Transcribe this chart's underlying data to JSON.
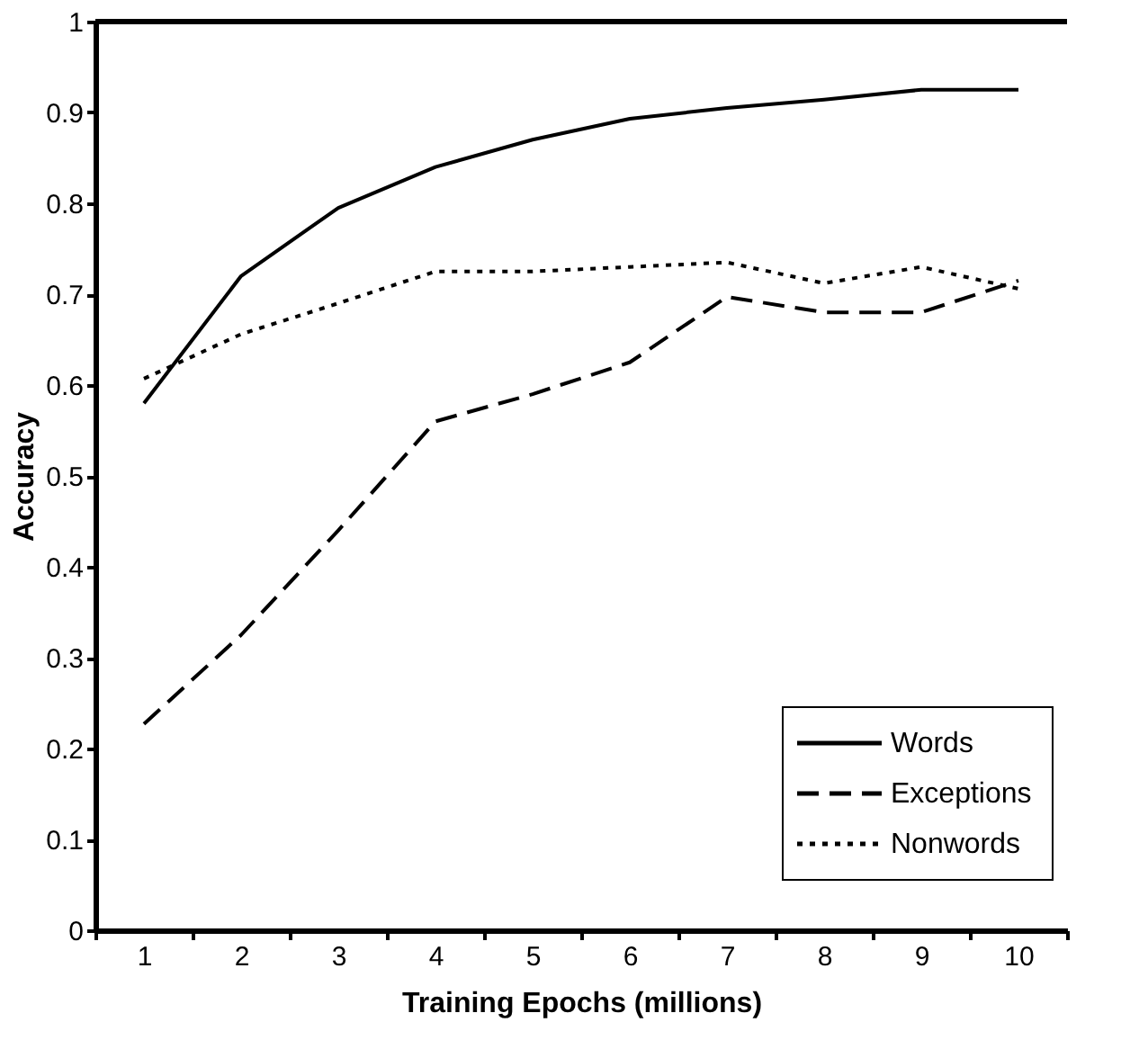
{
  "chart_data": {
    "type": "line",
    "xlabel": "Training Epochs (millions)",
    "ylabel": "Accuracy",
    "categories": [
      "1",
      "2",
      "3",
      "4",
      "5",
      "6",
      "7",
      "8",
      "9",
      "10"
    ],
    "series": [
      {
        "name": "Words",
        "color": "#000000",
        "line_style": "solid",
        "values": [
          0.58,
          0.72,
          0.795,
          0.84,
          0.87,
          0.893,
          0.905,
          0.914,
          0.925,
          0.925
        ]
      },
      {
        "name": "Exceptions",
        "color": "#000000",
        "line_style": "dashed",
        "values": [
          0.227,
          0.325,
          0.44,
          0.56,
          0.59,
          0.625,
          0.697,
          0.68,
          0.68,
          0.715
        ]
      },
      {
        "name": "Nonwords",
        "color": "#000000",
        "line_style": "dotted",
        "values": [
          0.607,
          0.656,
          0.69,
          0.725,
          0.725,
          0.73,
          0.735,
          0.712,
          0.73,
          0.706
        ]
      }
    ],
    "ylim": [
      0,
      1
    ],
    "yticks": [
      0,
      0.1,
      0.2,
      0.3,
      0.4,
      0.5,
      0.6,
      0.7,
      0.8,
      0.9,
      1
    ],
    "grid": false,
    "legend": "bottom right",
    "marker": "none"
  }
}
